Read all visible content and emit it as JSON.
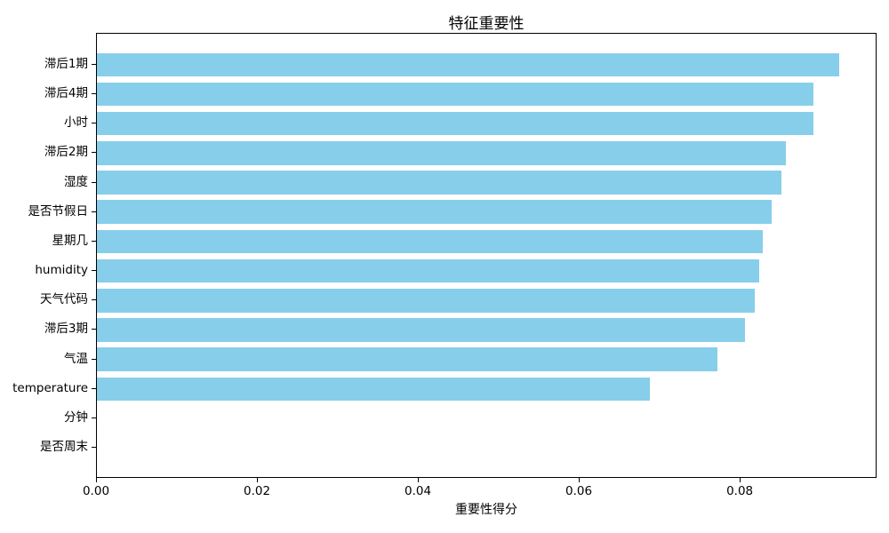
{
  "chart_data": {
    "type": "bar",
    "orientation": "horizontal",
    "title": "特征重要性",
    "xlabel": "重要性得分",
    "ylabel": "",
    "categories": [
      "滞后1期",
      "滞后4期",
      "小时",
      "滞后2期",
      "湿度",
      "是否节假日",
      "星期几",
      "humidity",
      "天气代码",
      "滞后3期",
      "气温",
      "temperature",
      "分钟",
      "是否周末"
    ],
    "values": [
      0.0922,
      0.0891,
      0.089,
      0.0856,
      0.0851,
      0.0839,
      0.0828,
      0.0823,
      0.0818,
      0.0805,
      0.0771,
      0.0687,
      0.0,
      0.0
    ],
    "xlim": [
      0,
      0.097
    ],
    "xticks": [
      0,
      0.02,
      0.04,
      0.06,
      0.08
    ],
    "xtick_labels": [
      "0.00",
      "0.02",
      "0.04",
      "0.06",
      "0.08"
    ],
    "bar_color": "#87CEEB",
    "grid": false,
    "legend": null,
    "frame": true
  },
  "colors": {
    "bar": "#87CEEB",
    "axis": "#000000",
    "text": "#000000",
    "background": "#ffffff"
  }
}
